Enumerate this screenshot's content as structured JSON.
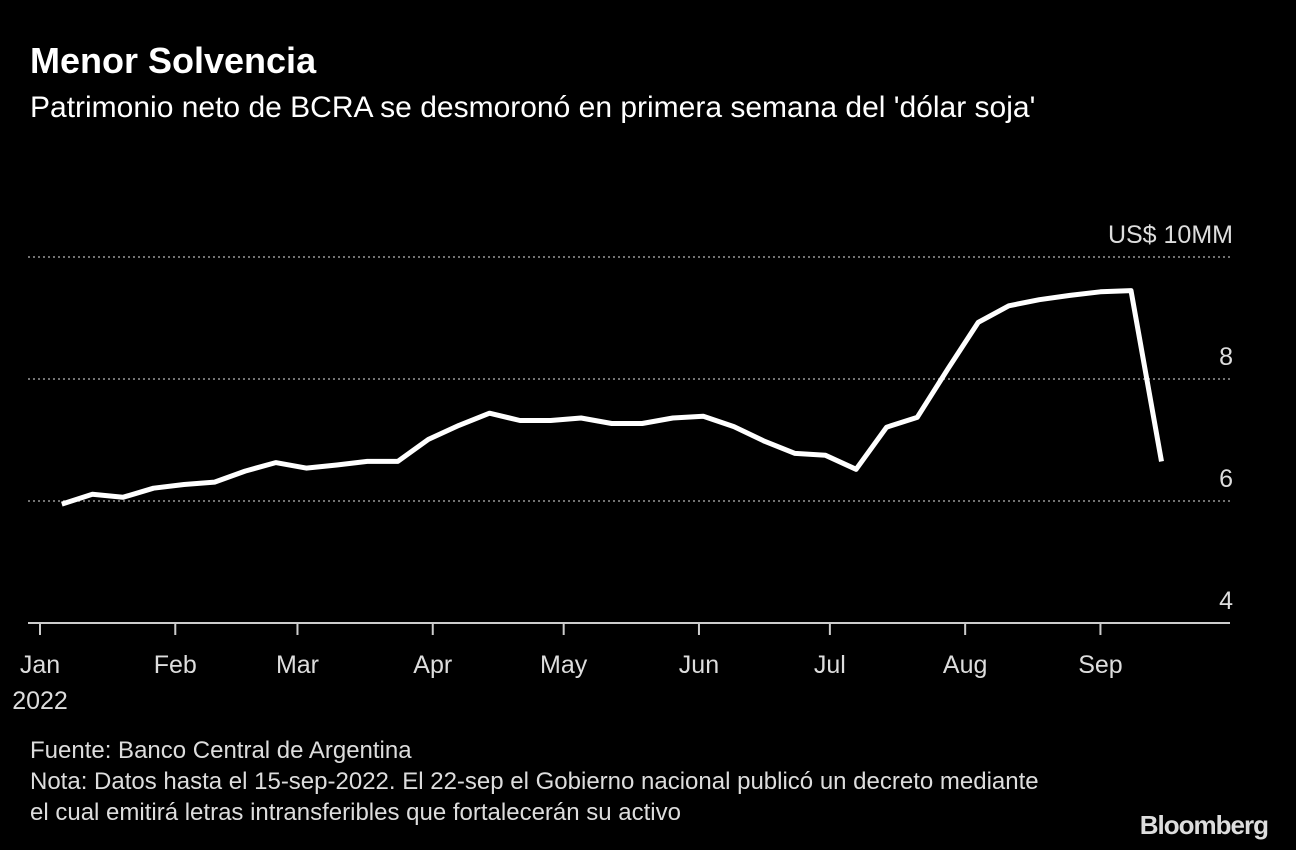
{
  "chart_data": {
    "type": "line",
    "title": "Menor Solvencia",
    "subtitle": "Patrimonio neto de BCRA se desmoronó en primera semana del 'dólar soja'",
    "x": [
      "2022-01-06",
      "2022-01-13",
      "2022-01-20",
      "2022-01-27",
      "2022-02-03",
      "2022-02-10",
      "2022-02-17",
      "2022-02-24",
      "2022-03-03",
      "2022-03-10",
      "2022-03-17",
      "2022-03-24",
      "2022-03-31",
      "2022-04-07",
      "2022-04-14",
      "2022-04-21",
      "2022-04-28",
      "2022-05-05",
      "2022-05-12",
      "2022-05-19",
      "2022-05-26",
      "2022-06-02",
      "2022-06-09",
      "2022-06-16",
      "2022-06-23",
      "2022-06-30",
      "2022-07-07",
      "2022-07-14",
      "2022-07-21",
      "2022-07-28",
      "2022-08-04",
      "2022-08-11",
      "2022-08-18",
      "2022-08-25",
      "2022-09-01",
      "2022-09-08",
      "2022-09-15"
    ],
    "series": [
      {
        "name": "Patrimonio neto",
        "color": "#ffffff",
        "values": [
          5.95,
          6.11,
          6.06,
          6.21,
          6.27,
          6.31,
          6.49,
          6.63,
          6.54,
          6.59,
          6.65,
          6.65,
          7.01,
          7.24,
          7.44,
          7.32,
          7.32,
          7.36,
          7.27,
          7.27,
          7.36,
          7.39,
          7.22,
          6.98,
          6.78,
          6.75,
          6.52,
          7.21,
          7.37,
          8.16,
          8.93,
          9.2,
          9.3,
          9.37,
          9.43,
          9.45,
          6.65
        ]
      }
    ],
    "xlim": [
      "2022-01-01",
      "2022-09-30"
    ],
    "xticks": [
      {
        "value": "2022-01-01",
        "label": "Jan"
      },
      {
        "value": "2022-02-01",
        "label": "Feb"
      },
      {
        "value": "2022-03-01",
        "label": "Mar"
      },
      {
        "value": "2022-04-01",
        "label": "Apr"
      },
      {
        "value": "2022-05-01",
        "label": "May"
      },
      {
        "value": "2022-06-01",
        "label": "Jun"
      },
      {
        "value": "2022-07-01",
        "label": "Jul"
      },
      {
        "value": "2022-08-01",
        "label": "Aug"
      },
      {
        "value": "2022-09-01",
        "label": "Sep"
      }
    ],
    "x_year_label": "2022",
    "ylim": [
      4,
      10
    ],
    "yticks": [
      4,
      6,
      8,
      {
        "value": 10,
        "label": "US$ 10MM"
      }
    ],
    "grid": true,
    "source": "Fuente: Banco Central de Argentina",
    "note": "Nota: Datos hasta el 15-sep-2022. El 22-sep el Gobierno nacional publicó un decreto mediante el cual emitirá letras intransferibles que fortalecerán su activo",
    "brand": "Bloomberg"
  }
}
